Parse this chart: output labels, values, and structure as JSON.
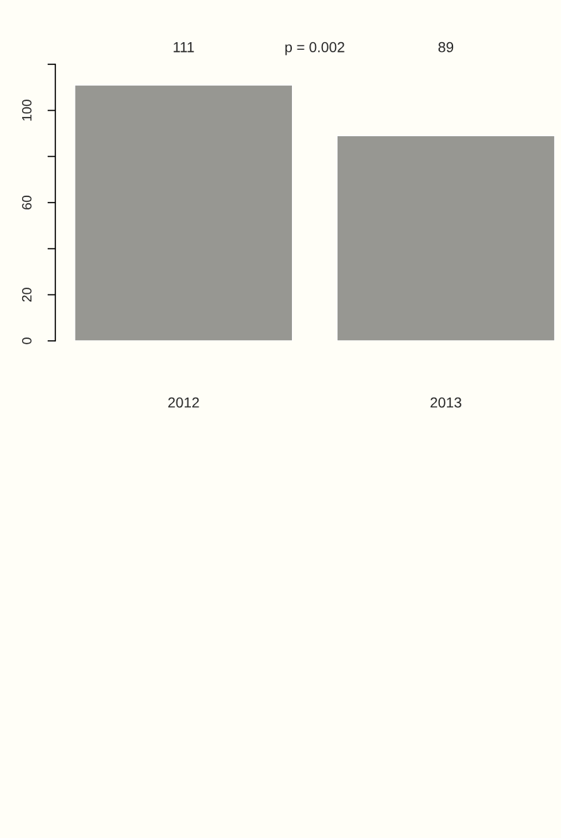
{
  "chart_data": {
    "type": "bar",
    "categories": [
      "2012",
      "2013"
    ],
    "values": [
      111,
      89
    ],
    "color": "#979792",
    "ylim": [
      0,
      120
    ],
    "yticks": [
      0,
      20,
      {
        "value": 40,
        "label": null
      },
      60,
      {
        "value": 80,
        "label": null
      },
      100,
      {
        "value": 120,
        "label": null
      }
    ],
    "annotations": [
      "111",
      "p = 0.002",
      "89"
    ],
    "grid": false
  }
}
